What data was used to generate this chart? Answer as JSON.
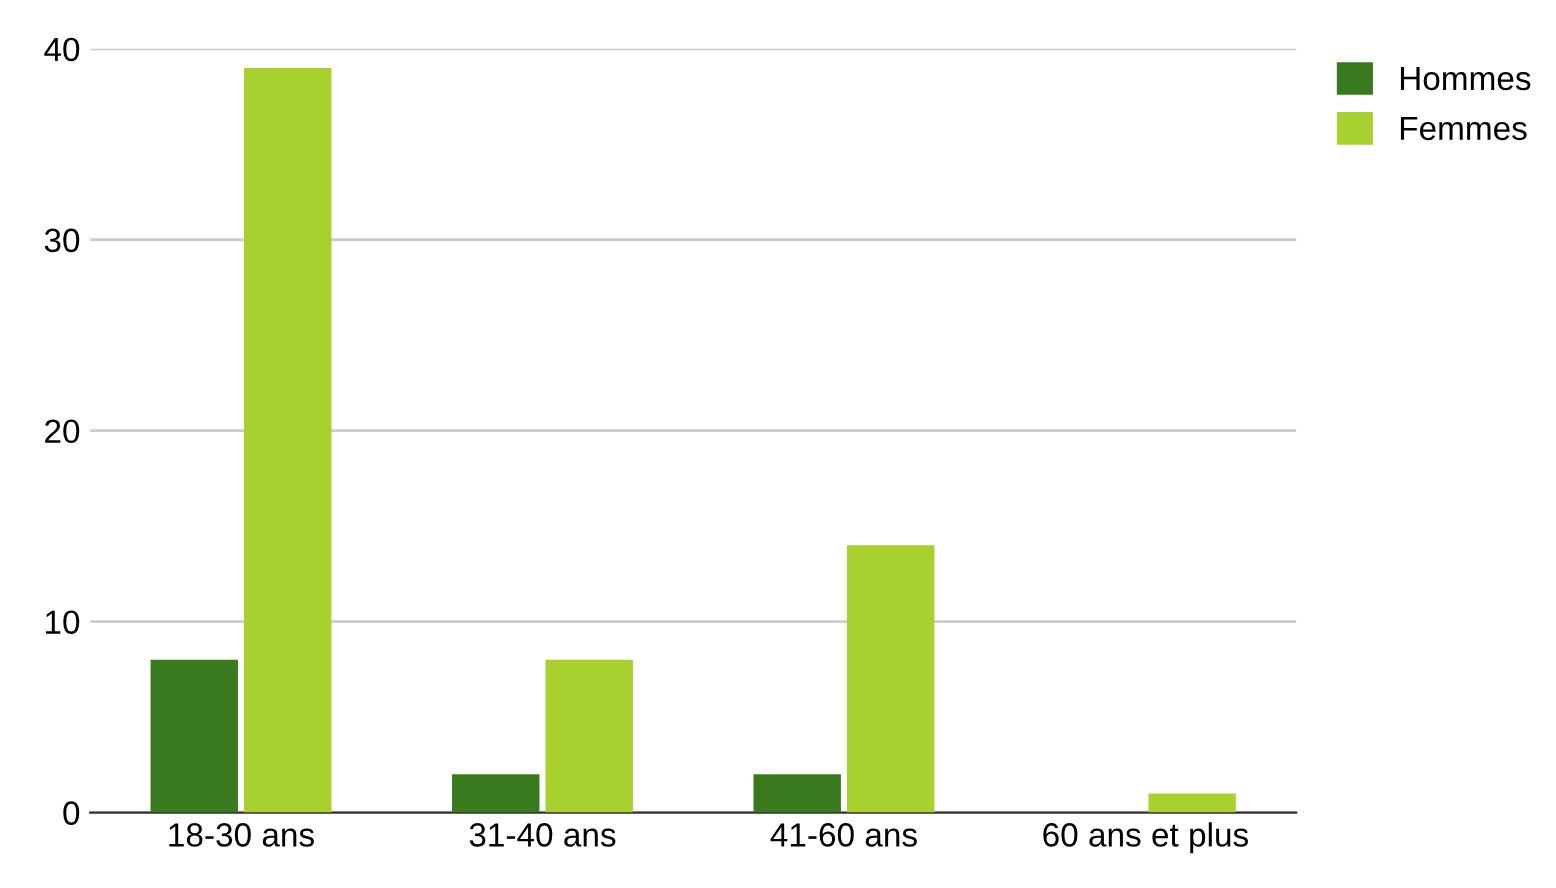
{
  "chart_data": {
    "type": "bar",
    "categories": [
      "18-30 ans",
      "31-40 ans",
      "41-60 ans",
      "60 ans et plus"
    ],
    "series": [
      {
        "name": "Hommes",
        "color": "#3a7a1e",
        "values": [
          8,
          2,
          2,
          0
        ]
      },
      {
        "name": "Femmes",
        "color": "#a8d12f",
        "values": [
          39,
          8,
          14,
          1
        ]
      }
    ],
    "ylim": [
      0,
      40
    ],
    "yticks": [
      0,
      10,
      20,
      30,
      40
    ],
    "grid": "y",
    "legend": "top right"
  }
}
